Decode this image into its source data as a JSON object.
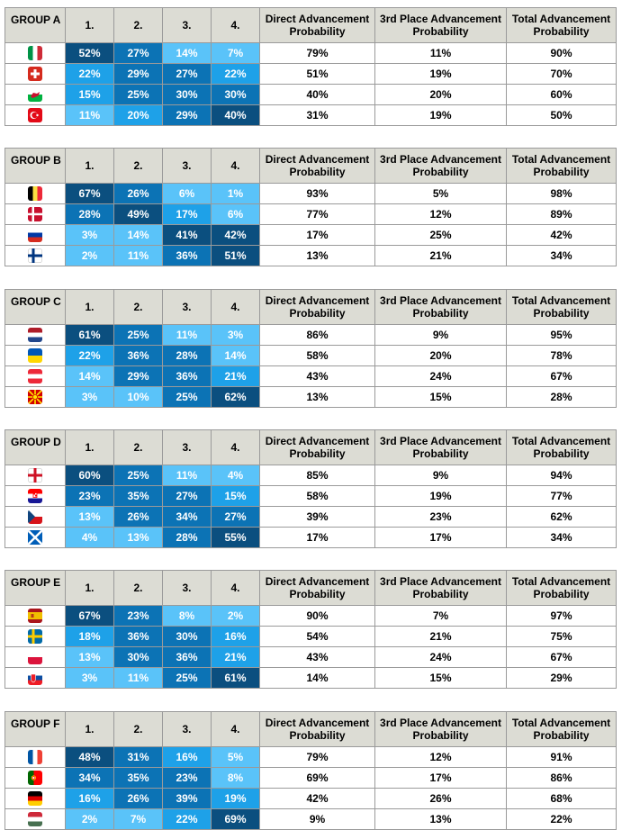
{
  "headers": {
    "c1": "1.",
    "c2": "2.",
    "c3": "3.",
    "c4": "4.",
    "direct": "Direct Advancement Probability",
    "third": "3rd Place Advancement Probability",
    "total": "Total Advancement Probability"
  },
  "colors": {
    "header_bg": "#dcdcd4",
    "border": "#9a9a9a",
    "shade_darkest": "#0b4f7f",
    "shade_dark": "#0c73b5",
    "shade_medium": "#1ea1e8",
    "shade_light": "#5ac3f9"
  },
  "groups": [
    {
      "name": "GROUP A",
      "rows": [
        {
          "flag": "italy-flag-icon",
          "p1": "52%",
          "p2": "27%",
          "p3": "14%",
          "p4": "7%",
          "direct": "79%",
          "third": "11%",
          "total": "90%"
        },
        {
          "flag": "switzerland-flag-icon",
          "p1": "22%",
          "p2": "29%",
          "p3": "27%",
          "p4": "22%",
          "direct": "51%",
          "third": "19%",
          "total": "70%"
        },
        {
          "flag": "wales-flag-icon",
          "p1": "15%",
          "p2": "25%",
          "p3": "30%",
          "p4": "30%",
          "direct": "40%",
          "third": "20%",
          "total": "60%"
        },
        {
          "flag": "turkey-flag-icon",
          "p1": "11%",
          "p2": "20%",
          "p3": "29%",
          "p4": "40%",
          "direct": "31%",
          "third": "19%",
          "total": "50%"
        }
      ]
    },
    {
      "name": "GROUP B",
      "rows": [
        {
          "flag": "belgium-flag-icon",
          "p1": "67%",
          "p2": "26%",
          "p3": "6%",
          "p4": "1%",
          "direct": "93%",
          "third": "5%",
          "total": "98%"
        },
        {
          "flag": "denmark-flag-icon",
          "p1": "28%",
          "p2": "49%",
          "p3": "17%",
          "p4": "6%",
          "direct": "77%",
          "third": "12%",
          "total": "89%"
        },
        {
          "flag": "russia-flag-icon",
          "p1": "3%",
          "p2": "14%",
          "p3": "41%",
          "p4": "42%",
          "direct": "17%",
          "third": "25%",
          "total": "42%"
        },
        {
          "flag": "finland-flag-icon",
          "p1": "2%",
          "p2": "11%",
          "p3": "36%",
          "p4": "51%",
          "direct": "13%",
          "third": "21%",
          "total": "34%"
        }
      ]
    },
    {
      "name": "GROUP C",
      "rows": [
        {
          "flag": "netherlands-flag-icon",
          "p1": "61%",
          "p2": "25%",
          "p3": "11%",
          "p4": "3%",
          "direct": "86%",
          "third": "9%",
          "total": "95%"
        },
        {
          "flag": "ukraine-flag-icon",
          "p1": "22%",
          "p2": "36%",
          "p3": "28%",
          "p4": "14%",
          "direct": "58%",
          "third": "20%",
          "total": "78%"
        },
        {
          "flag": "austria-flag-icon",
          "p1": "14%",
          "p2": "29%",
          "p3": "36%",
          "p4": "21%",
          "direct": "43%",
          "third": "24%",
          "total": "67%"
        },
        {
          "flag": "north-macedonia-flag-icon",
          "p1": "3%",
          "p2": "10%",
          "p3": "25%",
          "p4": "62%",
          "direct": "13%",
          "third": "15%",
          "total": "28%"
        }
      ]
    },
    {
      "name": "GROUP D",
      "rows": [
        {
          "flag": "england-flag-icon",
          "p1": "60%",
          "p2": "25%",
          "p3": "11%",
          "p4": "4%",
          "direct": "85%",
          "third": "9%",
          "total": "94%"
        },
        {
          "flag": "croatia-flag-icon",
          "p1": "23%",
          "p2": "35%",
          "p3": "27%",
          "p4": "15%",
          "direct": "58%",
          "third": "19%",
          "total": "77%"
        },
        {
          "flag": "czech-republic-flag-icon",
          "p1": "13%",
          "p2": "26%",
          "p3": "34%",
          "p4": "27%",
          "direct": "39%",
          "third": "23%",
          "total": "62%"
        },
        {
          "flag": "scotland-flag-icon",
          "p1": "4%",
          "p2": "13%",
          "p3": "28%",
          "p4": "55%",
          "direct": "17%",
          "third": "17%",
          "total": "34%"
        }
      ]
    },
    {
      "name": "GROUP E",
      "rows": [
        {
          "flag": "spain-flag-icon",
          "p1": "67%",
          "p2": "23%",
          "p3": "8%",
          "p4": "2%",
          "direct": "90%",
          "third": "7%",
          "total": "97%"
        },
        {
          "flag": "sweden-flag-icon",
          "p1": "18%",
          "p2": "36%",
          "p3": "30%",
          "p4": "16%",
          "direct": "54%",
          "third": "21%",
          "total": "75%"
        },
        {
          "flag": "poland-flag-icon",
          "p1": "13%",
          "p2": "30%",
          "p3": "36%",
          "p4": "21%",
          "direct": "43%",
          "third": "24%",
          "total": "67%"
        },
        {
          "flag": "slovakia-flag-icon",
          "p1": "3%",
          "p2": "11%",
          "p3": "25%",
          "p4": "61%",
          "direct": "14%",
          "third": "15%",
          "total": "29%"
        }
      ]
    },
    {
      "name": "GROUP F",
      "rows": [
        {
          "flag": "france-flag-icon",
          "p1": "48%",
          "p2": "31%",
          "p3": "16%",
          "p4": "5%",
          "direct": "79%",
          "third": "12%",
          "total": "91%"
        },
        {
          "flag": "portugal-flag-icon",
          "p1": "34%",
          "p2": "35%",
          "p3": "23%",
          "p4": "8%",
          "direct": "69%",
          "third": "17%",
          "total": "86%"
        },
        {
          "flag": "germany-flag-icon",
          "p1": "16%",
          "p2": "26%",
          "p3": "39%",
          "p4": "19%",
          "direct": "42%",
          "third": "26%",
          "total": "68%"
        },
        {
          "flag": "hungary-flag-icon",
          "p1": "2%",
          "p2": "7%",
          "p3": "22%",
          "p4": "69%",
          "direct": "9%",
          "third": "13%",
          "total": "22%"
        }
      ]
    }
  ]
}
